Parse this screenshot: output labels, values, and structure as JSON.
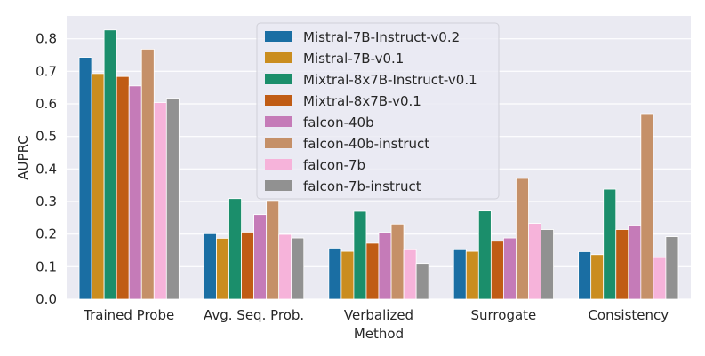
{
  "chart_data": {
    "type": "bar",
    "title": "",
    "xlabel": "Method",
    "ylabel": "AUPRC",
    "ylim": [
      0,
      0.87
    ],
    "yticks": [
      0.0,
      0.1,
      0.2,
      0.3,
      0.4,
      0.5,
      0.6,
      0.7,
      0.8
    ],
    "ytick_labels": [
      "0.0",
      "0.1",
      "0.2",
      "0.3",
      "0.4",
      "0.5",
      "0.6",
      "0.7",
      "0.8"
    ],
    "grid": true,
    "legend_position": "top-center",
    "categories": [
      "Trained Probe",
      "Avg. Seq. Prob.",
      "Verbalized",
      "Surrogate",
      "Consistency"
    ],
    "series": [
      {
        "name": "Mistral-7B-Instruct-v0.2",
        "color": "#1a6ea3",
        "values": [
          0.743,
          0.201,
          0.157,
          0.152,
          0.146
        ]
      },
      {
        "name": "Mistral-7B-v0.1",
        "color": "#ca8d1f",
        "values": [
          0.693,
          0.187,
          0.147,
          0.147,
          0.137
        ]
      },
      {
        "name": "Mixtral-8x7B-Instruct-v0.1",
        "color": "#1b8e6b",
        "values": [
          0.827,
          0.309,
          0.27,
          0.271,
          0.338
        ]
      },
      {
        "name": "Mixtral-8x7B-v0.1",
        "color": "#c05c15",
        "values": [
          0.684,
          0.206,
          0.172,
          0.178,
          0.214
        ]
      },
      {
        "name": "falcon-40b",
        "color": "#c57bb8",
        "values": [
          0.655,
          0.26,
          0.205,
          0.188,
          0.225
        ]
      },
      {
        "name": "falcon-40b-instruct",
        "color": "#c59068",
        "values": [
          0.768,
          0.303,
          0.231,
          0.371,
          0.57
        ]
      },
      {
        "name": "falcon-7b",
        "color": "#f6b3da",
        "values": [
          0.604,
          0.199,
          0.152,
          0.233,
          0.128
        ]
      },
      {
        "name": "falcon-7b-instruct",
        "color": "#919191",
        "values": [
          0.617,
          0.188,
          0.11,
          0.214,
          0.192
        ]
      }
    ]
  }
}
